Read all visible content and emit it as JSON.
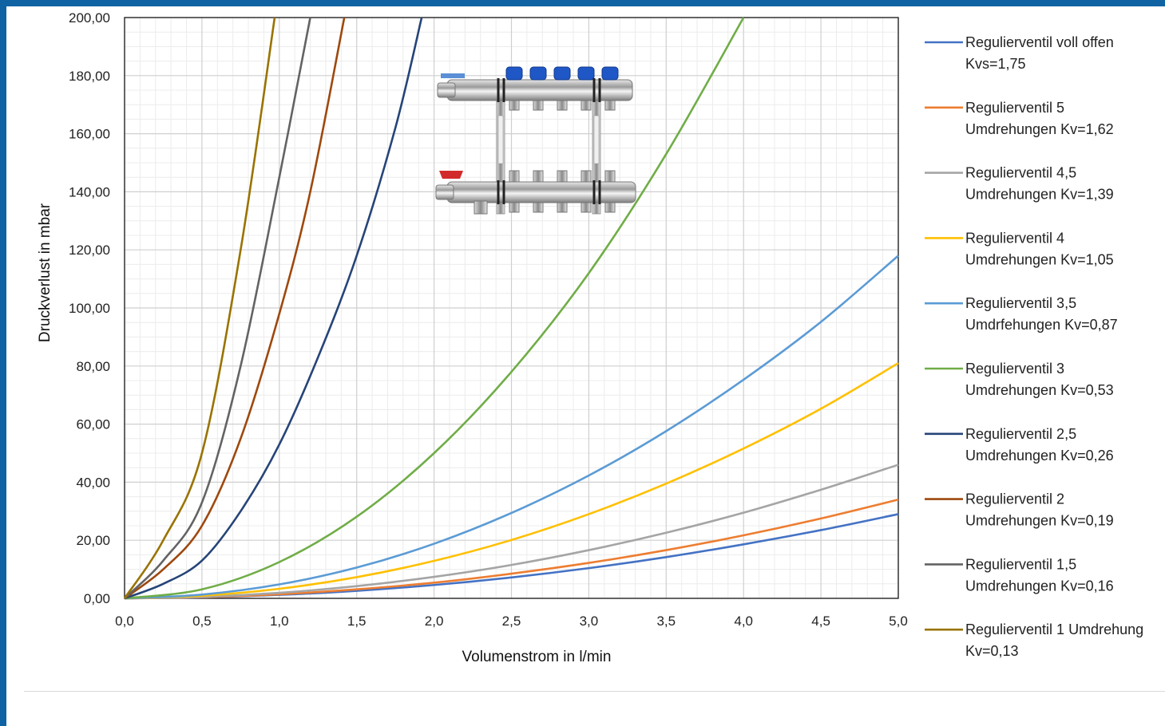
{
  "chart_data": {
    "type": "line",
    "title": "",
    "xlabel": "Volumenstrom in l/min",
    "ylabel": "Druckverlust in mbar",
    "xlim": [
      0,
      5
    ],
    "ylim": [
      0,
      200
    ],
    "x_ticks": [
      "0,0",
      "0,5",
      "1,0",
      "1,5",
      "2,0",
      "2,5",
      "3,0",
      "3,5",
      "4,0",
      "4,5",
      "5,0"
    ],
    "y_ticks": [
      "0,00",
      "20,00",
      "40,00",
      "60,00",
      "80,00",
      "100,00",
      "120,00",
      "140,00",
      "160,00",
      "180,00",
      "200,00"
    ],
    "grid": true,
    "legend_position": "right",
    "series": [
      {
        "name_lines": [
          "Regulierventil voll offen",
          "Kvs=1,75"
        ],
        "color": "#4472c4",
        "x": [
          0,
          0.5,
          1,
          1.5,
          2,
          2.5,
          3,
          3.5,
          4,
          4.5,
          5
        ],
        "y": [
          0,
          0.35,
          1.2,
          2.6,
          4.6,
          7.2,
          10.4,
          14.2,
          18.6,
          23.5,
          29
        ]
      },
      {
        "name_lines": [
          "Regulierventil 5",
          "Umdrehungen Kv=1,62"
        ],
        "color": "#ed7d31",
        "x": [
          0,
          0.5,
          1,
          1.5,
          2,
          2.5,
          3,
          3.5,
          4,
          4.5,
          5
        ],
        "y": [
          0,
          0.4,
          1.4,
          3.1,
          5.4,
          8.5,
          12.2,
          16.6,
          21.7,
          27.5,
          34
        ]
      },
      {
        "name_lines": [
          "Regulierventil 4,5",
          "Umdrehungen Kv=1,39"
        ],
        "color": "#a5a5a5",
        "x": [
          0,
          0.5,
          1,
          1.5,
          2,
          2.5,
          3,
          3.5,
          4,
          4.5,
          5
        ],
        "y": [
          0,
          0.5,
          1.9,
          4.2,
          7.4,
          11.5,
          16.6,
          22.6,
          29.5,
          37.4,
          46
        ]
      },
      {
        "name_lines": [
          "Regulierventil 4",
          "Umdrehungen Kv=1,05"
        ],
        "color": "#ffc000",
        "x": [
          0,
          0.5,
          1,
          1.5,
          2,
          2.5,
          3,
          3.5,
          4,
          4.5,
          5
        ],
        "y": [
          0,
          0.9,
          3.3,
          7.3,
          12.9,
          20.1,
          29,
          39.5,
          51.6,
          65.3,
          81
        ]
      },
      {
        "name_lines": [
          "Regulierventil 3,5",
          "Umdrfehungen Kv=0,87"
        ],
        "color": "#5b9bd5",
        "x": [
          0,
          0.5,
          1,
          1.5,
          2,
          2.5,
          3,
          3.5,
          4,
          4.5,
          5
        ],
        "y": [
          0,
          1.3,
          4.8,
          10.6,
          18.8,
          29.4,
          42.3,
          57.6,
          75.3,
          95.2,
          118
        ]
      },
      {
        "name_lines": [
          "Regulierventil 3",
          "Umdrehungen Kv=0,53"
        ],
        "color": "#70ad47",
        "x": [
          0,
          0.5,
          1,
          1.5,
          2,
          2.5,
          3,
          3.5,
          4
        ],
        "y": [
          0,
          3.1,
          12.5,
          28.1,
          50,
          78,
          112,
          153,
          200
        ]
      },
      {
        "name_lines": [
          "Regulierventil 2,5",
          "Umdrehungen Kv=0,26"
        ],
        "color": "#264478",
        "x": [
          0,
          0.25,
          0.5,
          0.75,
          1,
          1.25,
          1.5,
          1.75,
          1.92
        ],
        "y": [
          0,
          5,
          13,
          30,
          53,
          83,
          118,
          162,
          200
        ]
      },
      {
        "name_lines": [
          "Regulierventil 2",
          "Umdrehungen Kv=0,19"
        ],
        "color": "#9e480e",
        "x": [
          0,
          0.25,
          0.5,
          0.75,
          1,
          1.2,
          1.42
        ],
        "y": [
          0,
          10,
          25,
          55,
          98,
          140,
          200
        ]
      },
      {
        "name_lines": [
          "Regulierventil 1,5",
          "Umdrehungen Kv=0,16"
        ],
        "color": "#636363",
        "x": [
          0,
          0.25,
          0.5,
          0.75,
          1,
          1.2
        ],
        "y": [
          0,
          13,
          33,
          80,
          145,
          200
        ]
      },
      {
        "name_lines": [
          "Regulierventil 1 Umdrehung",
          "Kv=0,13"
        ],
        "color": "#997300",
        "x": [
          0,
          0.25,
          0.5,
          0.75,
          0.97
        ],
        "y": [
          0,
          20,
          50,
          120,
          200
        ]
      }
    ]
  }
}
